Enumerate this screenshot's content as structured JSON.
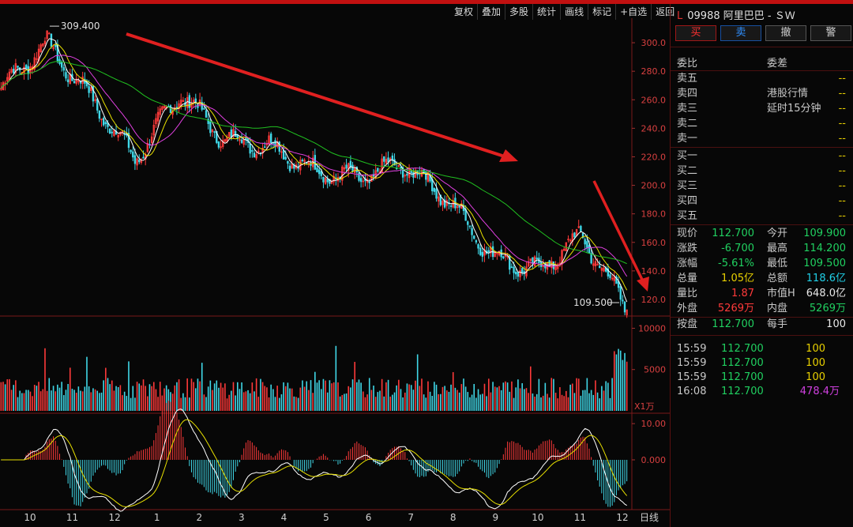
{
  "toolbar": [
    "复权",
    "叠加",
    "多股",
    "统计",
    "画线",
    "标记",
    "+自选",
    "返回"
  ],
  "chart": {
    "high_label": "309.400",
    "low_label": "109.500",
    "price_ticks": [
      "300.0",
      "280.0",
      "260.0",
      "240.0",
      "220.0",
      "200.0",
      "180.0",
      "160.0",
      "140.0",
      "120.0"
    ],
    "volume_ticks": [
      "10000",
      "5000"
    ],
    "volume_unit": "X1万",
    "macd_ticks": [
      "10.00",
      "0.000"
    ],
    "months": [
      "10",
      "11",
      "12",
      "1",
      "2",
      "3",
      "4",
      "5",
      "6",
      "7",
      "8",
      "9",
      "10",
      "11",
      "12"
    ],
    "period": "日线",
    "colors": {
      "ma5": "#ffffff",
      "ma10": "#e8e000",
      "ma20": "#e040e0",
      "ma60": "#20c020",
      "up": "#ff3a3a",
      "down": "#40d8e8",
      "arrow": "#e02020"
    }
  },
  "chart_data": {
    "type": "candlestick",
    "x": [
      "10",
      "11",
      "12",
      "1",
      "2",
      "3",
      "4",
      "5",
      "6",
      "7",
      "8",
      "9",
      "10",
      "11",
      "12"
    ],
    "close": [
      268,
      300,
      262,
      218,
      265,
      232,
      228,
      210,
      205,
      215,
      190,
      150,
      140,
      165,
      112.7
    ],
    "ylim": [
      110,
      315
    ],
    "high": 309.4,
    "low": 109.5,
    "volume_ylim": [
      0,
      11000
    ],
    "macd_ylim": [
      -12,
      12
    ]
  },
  "stock": {
    "market": "L",
    "code": "09988",
    "name": "阿里巴巴 - ＳＷ"
  },
  "buttons": {
    "buy": "买",
    "sell": "卖",
    "cancel": "撤",
    "alert": "警"
  },
  "book": {
    "ratio_label": "委比",
    "diff_label": "委差",
    "notice1": "港股行情",
    "notice2": "延时15分钟",
    "asks": [
      "卖五",
      "卖四",
      "卖三",
      "卖二",
      "卖一"
    ],
    "bids": [
      "买一",
      "买二",
      "买三",
      "买四",
      "买五"
    ],
    "empty": "--"
  },
  "quote": {
    "price_label": "现价",
    "price": "112.700",
    "open_label": "今开",
    "open": "109.900",
    "chg_label": "涨跌",
    "chg": "-6.700",
    "high_label": "最高",
    "high": "114.200",
    "pct_label": "涨幅",
    "pct": "-5.61%",
    "low_label": "最低",
    "low": "109.500",
    "vol_label": "总量",
    "vol": "1.05亿",
    "amt_label": "总额",
    "amt": "118.6亿",
    "qr_label": "量比",
    "qr": "1.87",
    "cap_label": "市值H",
    "cap": "648.0亿",
    "outer_label": "外盘",
    "outer": "5269万",
    "inner_label": "内盘",
    "inner": "5269万",
    "bid_label": "按盘",
    "bid": "112.700",
    "lot_label": "每手",
    "lot": "100"
  },
  "ticks": [
    {
      "time": "15:59",
      "price": "112.700",
      "vol": "100"
    },
    {
      "time": "15:59",
      "price": "112.700",
      "vol": "100"
    },
    {
      "time": "15:59",
      "price": "112.700",
      "vol": "100"
    },
    {
      "time": "16:08",
      "price": "112.700",
      "vol": "478.4万"
    }
  ]
}
